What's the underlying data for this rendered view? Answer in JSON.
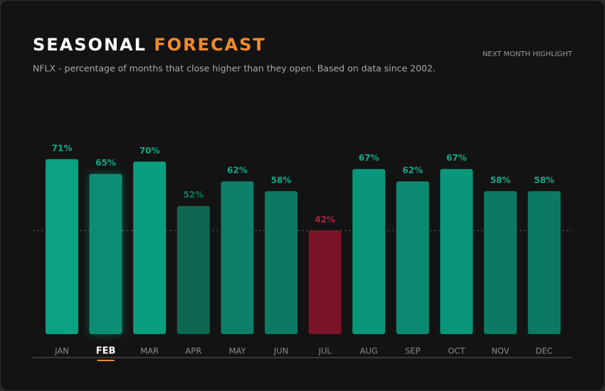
{
  "chart_data": {
    "type": "bar",
    "title": "SEASONAL",
    "title_accent": "FORECAST",
    "subtitle": "NFLX - percentage of months that close higher than they open. Based on data since 2002.",
    "note": "NEXT MONTH HIGHLIGHT",
    "categories": [
      "JAN",
      "FEB",
      "MAR",
      "APR",
      "MAY",
      "JUN",
      "JUL",
      "AUG",
      "SEP",
      "OCT",
      "NOV",
      "DEC"
    ],
    "values": [
      71,
      65,
      70,
      52,
      62,
      58,
      42,
      67,
      62,
      67,
      58,
      58
    ],
    "value_labels": [
      "71%",
      "65%",
      "70%",
      "52%",
      "62%",
      "58%",
      "42%",
      "67%",
      "62%",
      "67%",
      "58%",
      "58%"
    ],
    "colors": [
      "#0aa282",
      "#0b8e74",
      "#0a9e80",
      "#0e6650",
      "#0c8068",
      "#0c7a63",
      "#7a1426",
      "#0a967a",
      "#0b8a71",
      "#0a967a",
      "#0c7a63",
      "#0c7a63"
    ],
    "highlight_index": 1,
    "reference_line": 42,
    "ylim": [
      0,
      75
    ]
  }
}
